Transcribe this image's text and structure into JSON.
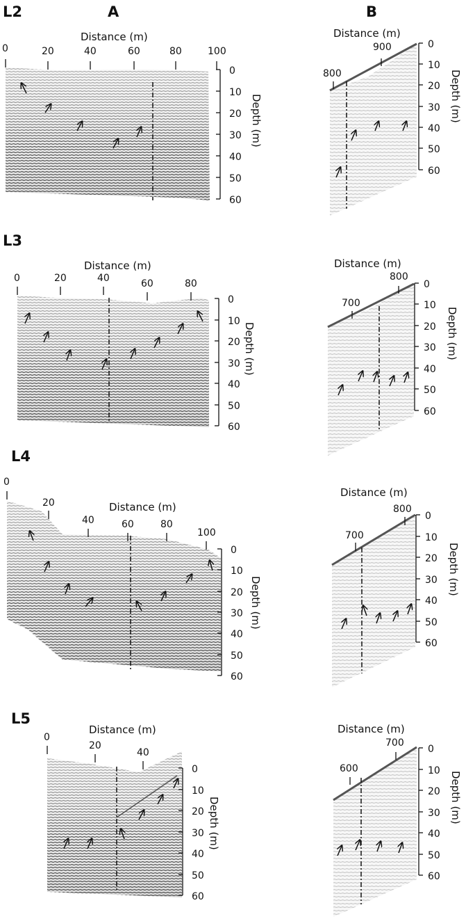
{
  "panel_headers": {
    "col_a": "A",
    "col_b": "B"
  },
  "rows": [
    {
      "id": "L2",
      "a": {
        "title": "Distance (m)",
        "dist_ticks": [
          "0",
          "20",
          "40",
          "60",
          "80",
          "100"
        ],
        "depth_title": "Depth (m)",
        "depth_ticks": [
          "0",
          "10",
          "20",
          "30",
          "40",
          "50",
          "60"
        ],
        "arrow_count": 6
      },
      "b": {
        "title": "Distance (m)",
        "dist_ticks": [
          "800",
          "900"
        ],
        "depth_title": "Depth (m)",
        "depth_ticks": [
          "0",
          "10",
          "20",
          "30",
          "40",
          "50",
          "60"
        ],
        "arrow_count": 4
      }
    },
    {
      "id": "L3",
      "a": {
        "title": "Distance (m)",
        "dist_ticks": [
          "0",
          "20",
          "40",
          "60",
          "80"
        ],
        "depth_title": "Depth (m)",
        "depth_ticks": [
          "0",
          "10",
          "20",
          "30",
          "40",
          "50",
          "60"
        ],
        "arrow_count": 8
      },
      "b": {
        "title": "Distance (m)",
        "dist_ticks": [
          "700",
          "800"
        ],
        "depth_title": "Depth (m)",
        "depth_ticks": [
          "0",
          "10",
          "20",
          "30",
          "40",
          "50",
          "60"
        ],
        "arrow_count": 5
      }
    },
    {
      "id": "L4",
      "a": {
        "title": "Distance (m)",
        "dist_ticks": [
          "0",
          "20",
          "40",
          "60",
          "80",
          "100"
        ],
        "depth_title": "Depth (m)",
        "depth_ticks": [
          "0",
          "10",
          "20",
          "30",
          "40",
          "50",
          "60"
        ],
        "arrow_count": 9
      },
      "b": {
        "title": "Distance (m)",
        "dist_ticks": [
          "700",
          "800"
        ],
        "depth_title": "Depth (m)",
        "depth_ticks": [
          "0",
          "10",
          "20",
          "30",
          "40",
          "50",
          "60"
        ],
        "arrow_count": 5
      }
    },
    {
      "id": "L5",
      "a": {
        "title": "Distance (m)",
        "dist_ticks": [
          "0",
          "20",
          "40"
        ],
        "depth_title": "Depth (m)",
        "depth_ticks": [
          "0",
          "10",
          "20",
          "30",
          "40",
          "50",
          "60"
        ],
        "arrow_count": 7
      },
      "b": {
        "title": "Distance (m)",
        "dist_ticks": [
          "600",
          "700"
        ],
        "depth_title": "Depth (m)",
        "depth_ticks": [
          "0",
          "10",
          "20",
          "30",
          "40",
          "50",
          "60"
        ],
        "arrow_count": 4
      }
    }
  ]
}
